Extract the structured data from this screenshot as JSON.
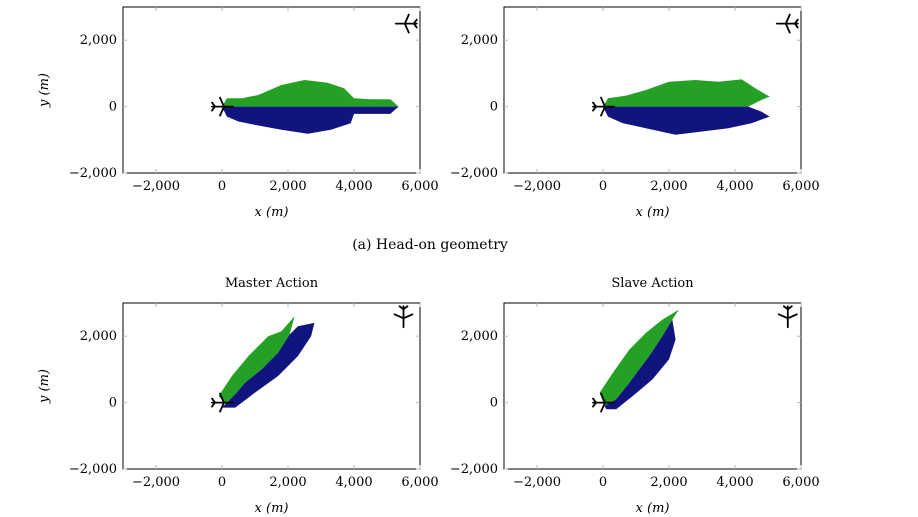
{
  "colors": {
    "green": "#24a024",
    "blue": "#11137f",
    "axis": "#000000",
    "tick": "#b5b5b5"
  },
  "caption_a": "(a) Head-on geometry",
  "icons": [
    "aircraft-icon"
  ],
  "chart_data": [
    {
      "type": "area",
      "title": "",
      "xlabel": "x (m)",
      "ylabel": "y (m)",
      "xlim": [
        -3000,
        6000
      ],
      "ylim": [
        -2000,
        3000
      ],
      "xticks": [
        -2000,
        0,
        2000,
        4000,
        6000
      ],
      "xtick_labels": [
        "−2,000",
        "0",
        "2,000",
        "4,000",
        "6,000"
      ],
      "yticks": [
        -2000,
        0,
        2000
      ],
      "ytick_labels": [
        "−2,000",
        "0",
        "2,000"
      ],
      "ownship": {
        "x": 0,
        "y": 0,
        "heading": "east"
      },
      "intruder": {
        "x": 5600,
        "y": 2500,
        "heading": "west"
      },
      "series": [
        {
          "color": "green",
          "points": [
            [
              0,
              0
            ],
            [
              150,
              250
            ],
            [
              600,
              250
            ],
            [
              1100,
              350
            ],
            [
              1800,
              650
            ],
            [
              2500,
              800
            ],
            [
              3200,
              720
            ],
            [
              3700,
              550
            ],
            [
              4000,
              250
            ],
            [
              4500,
              220
            ],
            [
              5100,
              220
            ],
            [
              5350,
              0
            ]
          ]
        },
        {
          "color": "blue",
          "points": [
            [
              0,
              0
            ],
            [
              5350,
              0
            ],
            [
              5100,
              -220
            ],
            [
              4000,
              -220
            ],
            [
              3900,
              -500
            ],
            [
              3300,
              -700
            ],
            [
              2600,
              -820
            ],
            [
              1800,
              -700
            ],
            [
              1000,
              -550
            ],
            [
              500,
              -450
            ],
            [
              150,
              -300
            ]
          ]
        }
      ]
    },
    {
      "type": "area",
      "title": "",
      "xlabel": "x (m)",
      "ylabel": "",
      "xlim": [
        -3000,
        6000
      ],
      "ylim": [
        -2000,
        3000
      ],
      "xticks": [
        -2000,
        0,
        2000,
        4000,
        6000
      ],
      "xtick_labels": [
        "−2,000",
        "0",
        "2,000",
        "4,000",
        "6,000"
      ],
      "yticks": [
        -2000,
        0,
        2000
      ],
      "ytick_labels": [
        "−2,000",
        "0",
        "2,000"
      ],
      "ownship": {
        "x": 0,
        "y": 0,
        "heading": "east"
      },
      "intruder": {
        "x": 5600,
        "y": 2500,
        "heading": "west"
      },
      "series": [
        {
          "color": "green",
          "points": [
            [
              0,
              0
            ],
            [
              150,
              250
            ],
            [
              700,
              330
            ],
            [
              1300,
              500
            ],
            [
              2000,
              750
            ],
            [
              2800,
              800
            ],
            [
              3500,
              750
            ],
            [
              4200,
              820
            ],
            [
              4700,
              500
            ],
            [
              5050,
              300
            ],
            [
              4800,
              200
            ],
            [
              4400,
              0
            ]
          ]
        },
        {
          "color": "blue",
          "points": [
            [
              0,
              0
            ],
            [
              4400,
              0
            ],
            [
              4800,
              -150
            ],
            [
              5050,
              -300
            ],
            [
              4500,
              -500
            ],
            [
              3800,
              -650
            ],
            [
              3000,
              -750
            ],
            [
              2200,
              -850
            ],
            [
              1300,
              -650
            ],
            [
              600,
              -500
            ],
            [
              150,
              -300
            ]
          ]
        }
      ]
    },
    {
      "type": "area",
      "title": "Master Action",
      "xlabel": "x (m)",
      "ylabel": "y (m)",
      "xlim": [
        -3000,
        6000
      ],
      "ylim": [
        -2000,
        3000
      ],
      "xticks": [
        -2000,
        0,
        2000,
        4000,
        6000
      ],
      "xtick_labels": [
        "−2,000",
        "0",
        "2,000",
        "4,000",
        "6,000"
      ],
      "yticks": [
        -2000,
        0,
        2000
      ],
      "ytick_labels": [
        "−2,000",
        "0",
        "2,000"
      ],
      "ownship": {
        "x": 0,
        "y": 0,
        "heading": "east"
      },
      "intruder": {
        "x": 5500,
        "y": 2600,
        "heading": "south"
      },
      "series": [
        {
          "color": "green",
          "points": [
            [
              -100,
              200
            ],
            [
              300,
              800
            ],
            [
              800,
              1400
            ],
            [
              1400,
              2000
            ],
            [
              1800,
              2150
            ],
            [
              2200,
              2600
            ],
            [
              2050,
              2050
            ],
            [
              1700,
              1500
            ],
            [
              1200,
              1000
            ],
            [
              700,
              600
            ],
            [
              400,
              250
            ],
            [
              100,
              -50
            ]
          ]
        },
        {
          "color": "blue",
          "points": [
            [
              100,
              -50
            ],
            [
              400,
              250
            ],
            [
              700,
              600
            ],
            [
              1200,
              1000
            ],
            [
              1700,
              1500
            ],
            [
              2050,
              2050
            ],
            [
              2300,
              2300
            ],
            [
              2800,
              2400
            ],
            [
              2700,
              2000
            ],
            [
              2300,
              1400
            ],
            [
              1700,
              800
            ],
            [
              1000,
              300
            ],
            [
              400,
              -150
            ],
            [
              0,
              -150
            ]
          ]
        }
      ]
    },
    {
      "type": "area",
      "title": "Slave Action",
      "xlabel": "x (m)",
      "ylabel": "",
      "xlim": [
        -3000,
        6000
      ],
      "ylim": [
        -2000,
        3000
      ],
      "xticks": [
        -2000,
        0,
        2000,
        4000,
        6000
      ],
      "xtick_labels": [
        "−2,000",
        "0",
        "2,000",
        "4,000",
        "6,000"
      ],
      "yticks": [
        -2000,
        0,
        2000
      ],
      "ytick_labels": [
        "−2,000",
        "0",
        "2,000"
      ],
      "ownship": {
        "x": 0,
        "y": 0,
        "heading": "east"
      },
      "intruder": {
        "x": 5600,
        "y": 2600,
        "heading": "south"
      },
      "series": [
        {
          "color": "green",
          "points": [
            [
              -100,
              300
            ],
            [
              300,
              900
            ],
            [
              800,
              1600
            ],
            [
              1300,
              2100
            ],
            [
              1800,
              2500
            ],
            [
              2300,
              2800
            ],
            [
              2100,
              2500
            ],
            [
              1800,
              2000
            ],
            [
              1400,
              1400
            ],
            [
              800,
              600
            ],
            [
              400,
              100
            ],
            [
              50,
              -100
            ]
          ]
        },
        {
          "color": "blue",
          "points": [
            [
              50,
              -100
            ],
            [
              400,
              100
            ],
            [
              800,
              600
            ],
            [
              1400,
              1400
            ],
            [
              1800,
              2000
            ],
            [
              2100,
              2500
            ],
            [
              2200,
              1900
            ],
            [
              2000,
              1300
            ],
            [
              1500,
              700
            ],
            [
              900,
              200
            ],
            [
              400,
              -200
            ],
            [
              100,
              -200
            ]
          ]
        }
      ]
    }
  ]
}
